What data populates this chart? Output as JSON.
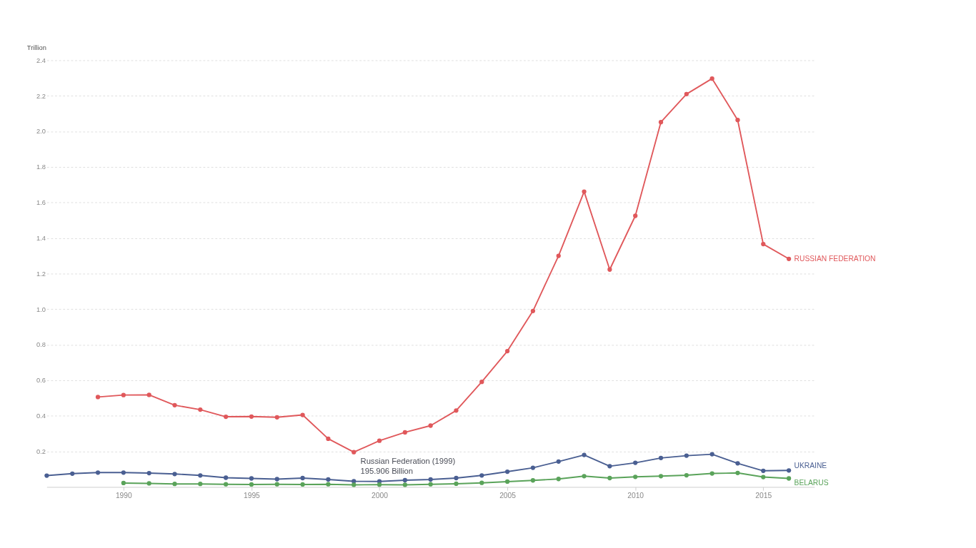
{
  "chart_data": {
    "type": "line",
    "ylabel": "Trillion",
    "xlim": [
      1987,
      2017
    ],
    "xticks": [
      1990,
      1995,
      2000,
      2005,
      2010,
      2015
    ],
    "ylim": [
      0,
      2.4
    ],
    "yticks": [
      0.2,
      0.4,
      0.6,
      0.8,
      {
        "value": 1,
        "label": "1.0"
      },
      1.2,
      1.4,
      1.6,
      1.8,
      {
        "value": 2,
        "label": "2.0"
      },
      2.2,
      2.4
    ],
    "grid": "y",
    "legend": false,
    "marker": "circle",
    "line_style": "solid",
    "series": [
      {
        "name": "RUSSIAN FEDERATION",
        "color": "#e0585b",
        "x": [
          1989,
          1990,
          1991,
          1992,
          1993,
          1994,
          1995,
          1996,
          1997,
          1998,
          1999,
          2000,
          2001,
          2002,
          2003,
          2004,
          2005,
          2006,
          2007,
          2008,
          2009,
          2010,
          2011,
          2012,
          2013,
          2014,
          2015,
          2016
        ],
        "values": [
          0.506,
          0.517,
          0.518,
          0.46,
          0.435,
          0.395,
          0.396,
          0.392,
          0.405,
          0.271,
          0.196,
          0.26,
          0.307,
          0.345,
          0.43,
          0.591,
          0.764,
          0.99,
          1.3,
          1.661,
          1.223,
          1.525,
          2.052,
          2.21,
          2.297,
          2.064,
          1.366,
          1.283
        ]
      },
      {
        "name": "UKRAINE",
        "color": "#4a5f92",
        "x": [
          1987,
          1988,
          1989,
          1990,
          1991,
          1992,
          1993,
          1994,
          1995,
          1996,
          1997,
          1998,
          1999,
          2000,
          2001,
          2002,
          2003,
          2004,
          2005,
          2006,
          2007,
          2008,
          2009,
          2010,
          2011,
          2012,
          2013,
          2014,
          2015,
          2016
        ],
        "values": [
          0.064,
          0.075,
          0.081,
          0.081,
          0.078,
          0.073,
          0.065,
          0.052,
          0.048,
          0.044,
          0.05,
          0.042,
          0.032,
          0.031,
          0.038,
          0.042,
          0.05,
          0.065,
          0.086,
          0.108,
          0.143,
          0.18,
          0.117,
          0.136,
          0.163,
          0.176,
          0.184,
          0.133,
          0.091,
          0.093
        ]
      },
      {
        "name": "BELARUS",
        "color": "#5aa35a",
        "x": [
          1990,
          1991,
          1992,
          1993,
          1994,
          1995,
          1996,
          1997,
          1998,
          1999,
          2000,
          2001,
          2002,
          2003,
          2004,
          2005,
          2006,
          2007,
          2008,
          2009,
          2010,
          2011,
          2012,
          2013,
          2014,
          2015,
          2016
        ],
        "values": [
          0.022,
          0.02,
          0.017,
          0.017,
          0.015,
          0.014,
          0.015,
          0.014,
          0.015,
          0.012,
          0.013,
          0.012,
          0.015,
          0.018,
          0.023,
          0.03,
          0.037,
          0.045,
          0.061,
          0.05,
          0.057,
          0.061,
          0.066,
          0.076,
          0.079,
          0.056,
          0.048
        ]
      }
    ],
    "annotations": [
      {
        "text": "Russian Federation (1999)\n195.906 Billion",
        "x": 1999,
        "y": 0.196
      }
    ]
  }
}
